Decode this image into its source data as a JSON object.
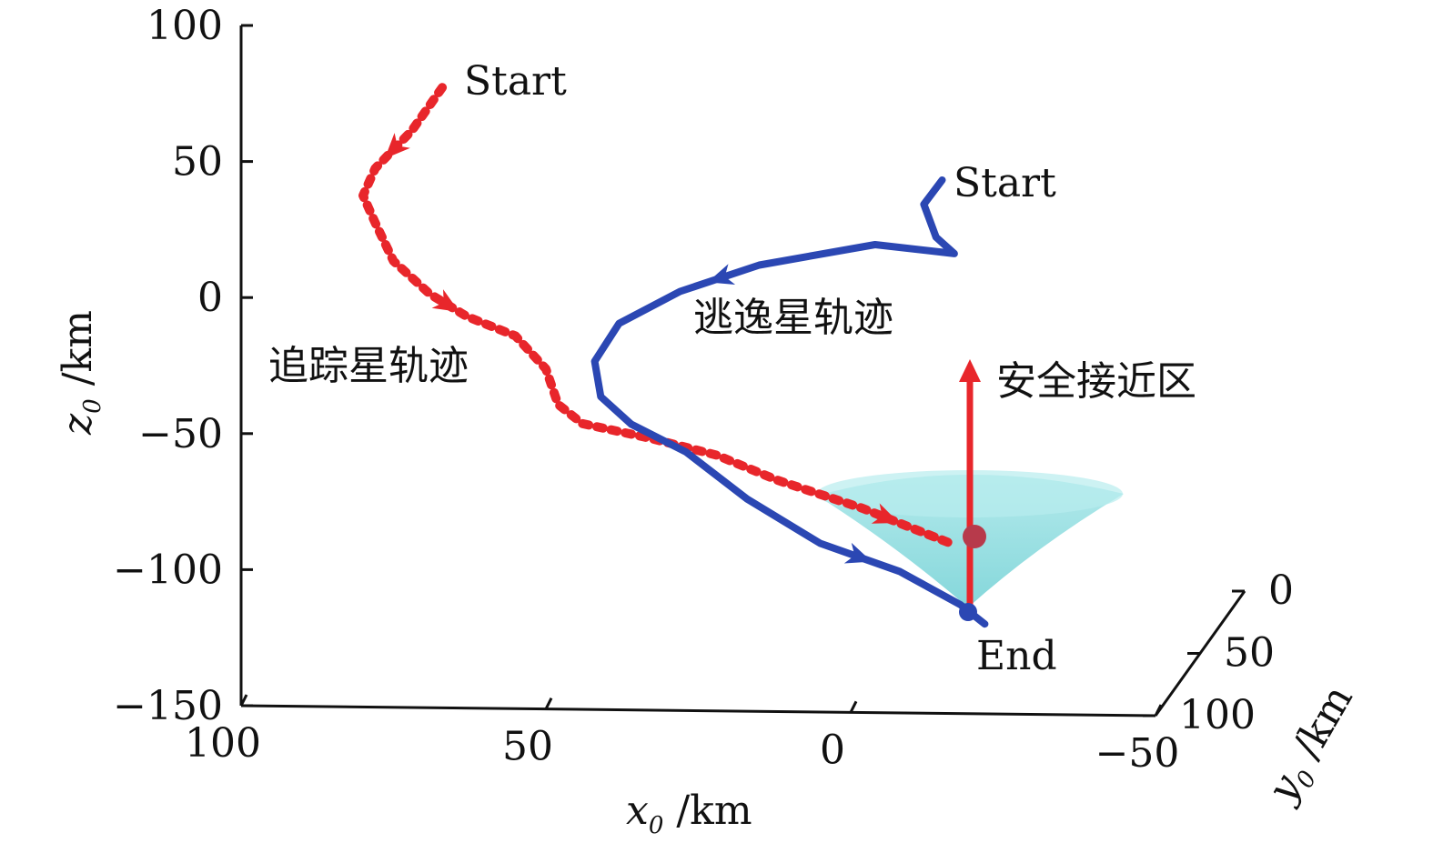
{
  "chart_data": {
    "type": "line",
    "projection": "3d-oblique",
    "axes": {
      "x": {
        "label": "x",
        "subscript": "0",
        "unit": " /km",
        "range": [
          100,
          -50
        ],
        "ticks": [
          100,
          50,
          0,
          -50
        ],
        "tick_labels": [
          "100",
          "50",
          "0",
          "−50"
        ]
      },
      "y": {
        "label": "y",
        "subscript": "0",
        "unit": " /km",
        "range": [
          0,
          100
        ],
        "ticks": [
          0,
          50,
          100
        ],
        "tick_labels": [
          "0",
          "50",
          "100"
        ]
      },
      "z": {
        "label": "z",
        "subscript": "0",
        "unit": " /km",
        "range": [
          -150,
          100
        ],
        "ticks": [
          100,
          50,
          0,
          -50,
          -100,
          -150
        ],
        "tick_labels": [
          "100",
          "50",
          "0",
          "−50",
          "−100",
          "−150"
        ]
      }
    },
    "grid": false,
    "series": [
      {
        "name": "追踪星轨迹",
        "color": "#e8262b",
        "style": "dotted",
        "points": [
          {
            "x": 67,
            "z": 78
          },
          {
            "x": 72,
            "z": 62
          },
          {
            "x": 78,
            "z": 48
          },
          {
            "x": 80,
            "z": 38
          },
          {
            "x": 78,
            "z": 28
          },
          {
            "x": 75,
            "z": 14
          },
          {
            "x": 69,
            "z": 2
          },
          {
            "x": 63,
            "z": -6
          },
          {
            "x": 55,
            "z": -13
          },
          {
            "x": 50,
            "z": -25
          },
          {
            "x": 48,
            "z": -38
          },
          {
            "x": 44,
            "z": -45
          },
          {
            "x": 33,
            "z": -50
          },
          {
            "x": 22,
            "z": -56
          },
          {
            "x": 12,
            "z": -65
          },
          {
            "x": -2,
            "z": -75
          },
          {
            "x": -10,
            "z": -82
          },
          {
            "x": -17,
            "z": -88
          }
        ]
      },
      {
        "name": "逃逸星轨迹",
        "color": "#2b47b3",
        "style": "solid",
        "points": [
          {
            "x": -15,
            "z": 46
          },
          {
            "x": -12,
            "z": 37
          },
          {
            "x": -14,
            "z": 25
          },
          {
            "x": -17,
            "z": 19
          },
          {
            "x": -4,
            "z": 22
          },
          {
            "x": 15,
            "z": 14
          },
          {
            "x": 28,
            "z": 4
          },
          {
            "x": 38,
            "z": -8
          },
          {
            "x": 42,
            "z": -22
          },
          {
            "x": 41,
            "z": -35
          },
          {
            "x": 36,
            "z": -45
          },
          {
            "x": 27,
            "z": -55
          },
          {
            "x": 17,
            "z": -72
          },
          {
            "x": 5,
            "z": -88
          },
          {
            "x": -8,
            "z": -98
          },
          {
            "x": -18,
            "z": -110
          },
          {
            "x": -22,
            "z": -117
          }
        ]
      }
    ],
    "annotations": {
      "start_red": "Start",
      "start_blue": "Start",
      "end": "End",
      "chaser_label": "追踪星轨迹",
      "evader_label": "逃逸星轨迹",
      "safe_zone_label": "安全接近区"
    },
    "safe_zone": {
      "shape": "cone",
      "apex": {
        "x": -20,
        "z": -113
      },
      "top": {
        "x": -20,
        "z": -72
      },
      "color": "#7fd8da"
    },
    "safe_zone_vector": {
      "from": {
        "x": -20,
        "z": -113
      },
      "to": {
        "x": -20,
        "z": -24
      },
      "color": "#e8262b"
    }
  }
}
